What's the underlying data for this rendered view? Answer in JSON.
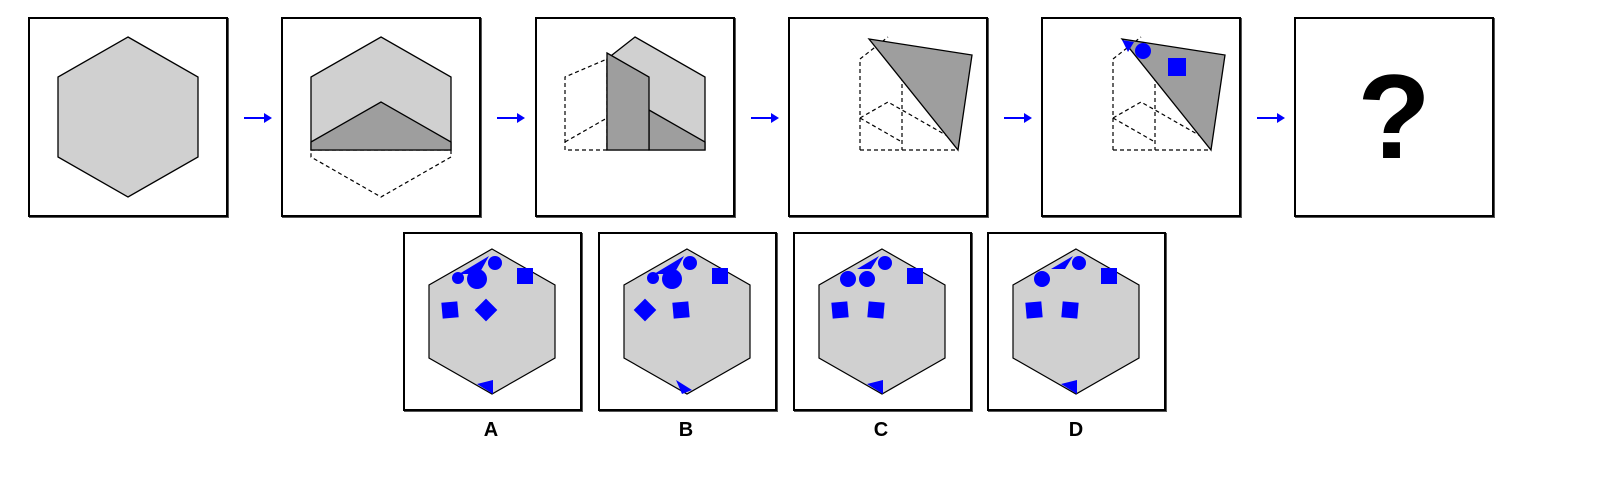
{
  "colors": {
    "paper": "#d0d0d0",
    "paper_folded": "#9e9e9e",
    "punch": "#0000ff",
    "arrow": "#0000ff",
    "outline": "#000000"
  },
  "sequence": {
    "steps": [
      {
        "name": "step-1-unfolded-hexagon"
      },
      {
        "name": "step-2-fold-bottom-up"
      },
      {
        "name": "step-3-fold-left-over"
      },
      {
        "name": "step-4-fold-diagonal"
      },
      {
        "name": "step-5-punch-holes"
      }
    ],
    "question_mark": "?",
    "arrow_icon": "right-arrow-icon"
  },
  "options": [
    {
      "label": "A"
    },
    {
      "label": "B"
    },
    {
      "label": "C"
    },
    {
      "label": "D"
    }
  ]
}
